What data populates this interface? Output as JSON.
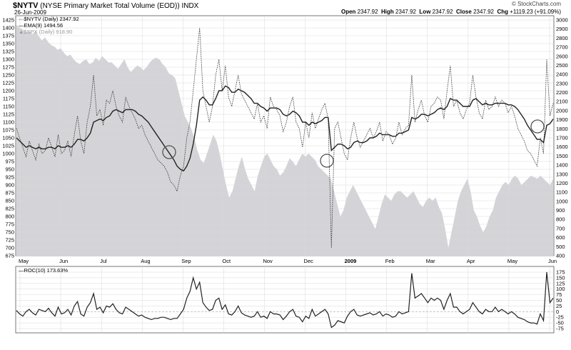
{
  "header": {
    "symbol": "$NYTV",
    "name": "(NYSE Primary Market Total Volume (EOD))",
    "exchange": "INDX",
    "date": "26-Jun-2009",
    "credit": "© StockCharts.com",
    "open_label": "Open",
    "open": "2347.92",
    "high_label": "High",
    "high": "2347.92",
    "low_label": "Low",
    "low": "2347.92",
    "close_label": "Close",
    "close": "2347.92",
    "chg_label": "Chg",
    "chg": "+1119.23 (+91.09%)"
  },
  "legend": {
    "main": "$NYTV (Daily) 2347.92",
    "ema": "EMA(9) 1494.56",
    "spx": "$SPX (Daily) 918.90",
    "roc": "ROC(10) 173.63%"
  },
  "colors": {
    "area": "#d4d4d8",
    "line": "#222222",
    "grid": "#d8d8d8"
  },
  "chart_data": [
    {
      "type": "line",
      "x_labels": [
        "May",
        "Jun",
        "Jul",
        "Aug",
        "Sep",
        "Oct",
        "Nov",
        "Dec",
        "2009",
        "Feb",
        "Mar",
        "Apr",
        "May",
        "Jun"
      ],
      "left_axis_ticks": [
        675,
        700,
        725,
        750,
        775,
        800,
        825,
        850,
        875,
        900,
        925,
        950,
        975,
        1000,
        1025,
        1050,
        1075,
        1100,
        1125,
        1150,
        1175,
        1200,
        1225,
        1250,
        1275,
        1300,
        1325,
        1350,
        1375,
        1400,
        1425
      ],
      "right_axis_ticks": [
        400,
        500,
        600,
        700,
        800,
        900,
        1000,
        1100,
        1200,
        1300,
        1400,
        1500,
        1600,
        1700,
        1800,
        1900,
        2000,
        2100,
        2200,
        2300,
        2400,
        2500,
        2600,
        2700,
        2800,
        2900,
        3000
      ],
      "spx_area": [
        1410,
        1400,
        1395,
        1385,
        1390,
        1380,
        1388,
        1375,
        1360,
        1370,
        1355,
        1345,
        1340,
        1330,
        1335,
        1320,
        1310,
        1315,
        1300,
        1290,
        1285,
        1295,
        1300,
        1285,
        1290,
        1305,
        1295,
        1310,
        1300,
        1290,
        1290,
        1280,
        1270,
        1285,
        1300,
        1275,
        1260,
        1270,
        1280,
        1275,
        1265,
        1275,
        1290,
        1300,
        1305,
        1300,
        1285,
        1275,
        1255,
        1250,
        1240,
        1200,
        1160,
        1120,
        1100,
        1080,
        1050,
        1010,
        980,
        970,
        1000,
        1030,
        1060,
        1040,
        1000,
        950,
        900,
        860,
        880,
        920,
        960,
        990,
        950,
        920,
        900,
        880,
        930,
        960,
        990,
        1000,
        980,
        960,
        950,
        930,
        940,
        960,
        985,
        975,
        960,
        980,
        1000,
        990,
        1000,
        990,
        980,
        960,
        950,
        940,
        930,
        920,
        880,
        840,
        800,
        820,
        860,
        880,
        900,
        880,
        860,
        840,
        820,
        800,
        780,
        760,
        800,
        840,
        870,
        860,
        850,
        870,
        880,
        880,
        870,
        860,
        870,
        880,
        860,
        840,
        830,
        850,
        860,
        850,
        860,
        830,
        810,
        760,
        700,
        750,
        800,
        850,
        880,
        900,
        920,
        880,
        820,
        800,
        770,
        750,
        770,
        800,
        820,
        860,
        880,
        900,
        910,
        900,
        920,
        930,
        920,
        900,
        910,
        920,
        930,
        925,
        920,
        930,
        920,
        910,
        900,
        920
      ],
      "nytv_daily": [
        1080,
        1050,
        1020,
        990,
        1040,
        1010,
        980,
        1030,
        1000,
        1010,
        1050,
        1020,
        990,
        1060,
        1000,
        1010,
        1040,
        990,
        1060,
        1120,
        1040,
        1000,
        1100,
        1150,
        1250,
        1120,
        1140,
        1090,
        1170,
        1160,
        1200,
        1150,
        1120,
        1100,
        1180,
        1150,
        1130,
        1110,
        1080,
        1090,
        1060,
        1040,
        1020,
        1000,
        980,
        970,
        960,
        940,
        910,
        900,
        880,
        930,
        960,
        1050,
        1100,
        1200,
        1300,
        1400,
        1200,
        1150,
        1100,
        1150,
        1250,
        1300,
        1200,
        1280,
        1180,
        1150,
        1200,
        1250,
        1190,
        1170,
        1150,
        1130,
        1110,
        1160,
        1100,
        1120,
        1080,
        1180,
        1150,
        1140,
        1120,
        1070,
        1100,
        1150,
        1180,
        1100,
        1080,
        1020,
        1100,
        1050,
        1130,
        1080,
        1110,
        1140,
        1160,
        1110,
        700,
        1080,
        1100,
        1050,
        1000,
        980,
        1050,
        1100,
        1050,
        1020,
        1040,
        1060,
        1080,
        1050,
        1070,
        1100,
        1040,
        1070,
        1060,
        1030,
        1050,
        1100,
        1060,
        1080,
        1090,
        1250,
        1100,
        1140,
        1170,
        1120,
        1100,
        1150,
        1160,
        1180,
        1170,
        1110,
        1200,
        1280,
        1150,
        1170,
        1130,
        1110,
        1140,
        1160,
        1250,
        1180,
        1130,
        1110,
        1170,
        1140,
        1150,
        1180,
        1150,
        1170,
        1160,
        1130,
        1150,
        1120,
        1080,
        1060,
        1040,
        1010,
        1000,
        980,
        960,
        1050,
        1000,
        1300,
        1120,
        1160
      ],
      "ema9": [
        1050,
        1040,
        1030,
        1020,
        1025,
        1020,
        1015,
        1020,
        1015,
        1015,
        1020,
        1020,
        1015,
        1025,
        1020,
        1020,
        1025,
        1020,
        1030,
        1045,
        1045,
        1040,
        1050,
        1065,
        1100,
        1105,
        1110,
        1105,
        1115,
        1120,
        1135,
        1140,
        1135,
        1130,
        1140,
        1140,
        1140,
        1135,
        1125,
        1120,
        1110,
        1100,
        1085,
        1070,
        1055,
        1040,
        1025,
        1010,
        995,
        980,
        960,
        950,
        945,
        960,
        985,
        1030,
        1090,
        1170,
        1180,
        1170,
        1155,
        1155,
        1175,
        1200,
        1200,
        1215,
        1210,
        1195,
        1195,
        1205,
        1200,
        1195,
        1185,
        1175,
        1160,
        1160,
        1150,
        1145,
        1135,
        1145,
        1145,
        1145,
        1140,
        1125,
        1120,
        1125,
        1135,
        1130,
        1120,
        1100,
        1100,
        1090,
        1100,
        1095,
        1100,
        1105,
        1115,
        1115,
        1010,
        1020,
        1030,
        1030,
        1025,
        1015,
        1020,
        1035,
        1040,
        1035,
        1035,
        1040,
        1050,
        1050,
        1055,
        1065,
        1060,
        1060,
        1060,
        1055,
        1055,
        1065,
        1065,
        1070,
        1075,
        1115,
        1110,
        1115,
        1125,
        1125,
        1120,
        1125,
        1130,
        1140,
        1145,
        1140,
        1150,
        1175,
        1170,
        1170,
        1160,
        1150,
        1150,
        1150,
        1170,
        1175,
        1165,
        1155,
        1160,
        1155,
        1155,
        1160,
        1160,
        1160,
        1160,
        1155,
        1155,
        1150,
        1140,
        1125,
        1110,
        1090,
        1075,
        1060,
        1045,
        1045,
        1035,
        1090,
        1095,
        1110
      ],
      "annotations": [
        "circle near Sep low",
        "circle near 2009 low",
        "circle near Jun low"
      ]
    },
    {
      "type": "line",
      "title": "ROC(10) 173.63%",
      "y_ticks": [
        -75,
        -50,
        -25,
        0,
        25,
        50,
        75,
        100,
        125,
        150,
        175
      ],
      "values": [
        5,
        -10,
        -20,
        0,
        10,
        -5,
        -15,
        10,
        5,
        0,
        15,
        -5,
        -20,
        20,
        -10,
        -5,
        10,
        -15,
        25,
        45,
        -10,
        -20,
        20,
        40,
        80,
        10,
        20,
        -5,
        25,
        20,
        35,
        10,
        -5,
        -10,
        20,
        10,
        0,
        -10,
        -20,
        -15,
        -25,
        -30,
        -35,
        -30,
        -30,
        -25,
        -25,
        -30,
        -35,
        -30,
        -30,
        -10,
        10,
        60,
        90,
        150,
        100,
        130,
        40,
        20,
        5,
        10,
        50,
        60,
        10,
        30,
        -10,
        -15,
        0,
        25,
        -5,
        -15,
        -20,
        -25,
        -20,
        0,
        -25,
        -20,
        -30,
        0,
        -10,
        -10,
        -15,
        -35,
        -20,
        0,
        10,
        -20,
        -25,
        -45,
        -20,
        -30,
        10,
        -20,
        -10,
        0,
        10,
        -10,
        -70,
        -60,
        -40,
        -45,
        -50,
        -20,
        0,
        10,
        -15,
        -20,
        -15,
        -10,
        -5,
        -15,
        -10,
        0,
        -20,
        -10,
        -15,
        -25,
        -20,
        0,
        -10,
        -5,
        0,
        170,
        60,
        70,
        80,
        60,
        40,
        60,
        50,
        60,
        50,
        10,
        50,
        80,
        20,
        20,
        0,
        -10,
        0,
        10,
        40,
        20,
        0,
        -10,
        10,
        0,
        0,
        20,
        0,
        10,
        0,
        -10,
        0,
        -10,
        -25,
        -30,
        -35,
        -45,
        -50,
        -50,
        -55,
        -10,
        -40,
        175,
        40,
        60
      ]
    }
  ]
}
